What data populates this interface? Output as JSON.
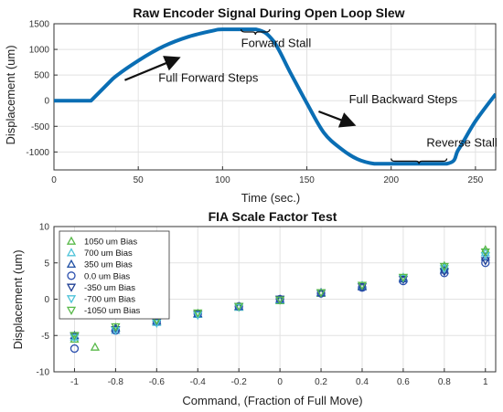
{
  "chart_data": [
    {
      "type": "line",
      "title": "Raw Encoder Signal During Open Loop Slew",
      "xlabel": "Time (sec.)",
      "ylabel": "Displacement (um)",
      "xlim": [
        0,
        262
      ],
      "ylim": [
        -1350,
        1500
      ],
      "xticks": [
        0,
        50,
        100,
        150,
        200,
        250
      ],
      "yticks": [
        -1000,
        -500,
        0,
        500,
        1000,
        1500
      ],
      "grid": true,
      "line_color": "#0a6eb4",
      "series": [
        {
          "x": [
            0,
            22,
            35,
            50,
            65,
            80,
            95,
            100,
            120,
            130,
            140,
            150,
            160,
            170,
            180,
            190,
            200,
            233,
            240,
            250,
            262
          ],
          "y": [
            0,
            0,
            430,
            780,
            1060,
            1250,
            1370,
            1390,
            1390,
            1170,
            560,
            -50,
            -620,
            -930,
            -1140,
            -1230,
            -1230,
            -1230,
            -950,
            -400,
            130
          ]
        }
      ],
      "annotations": [
        {
          "text": "Forward Stall",
          "x": 111,
          "y": 1050
        },
        {
          "text": "Full Forward Steps",
          "x": 62,
          "y": 370
        },
        {
          "text": "Full Backward Steps",
          "x": 175,
          "y": -50
        },
        {
          "text": "Reverse Stall",
          "x": 221,
          "y": -900
        }
      ],
      "arrows": [
        {
          "from": [
            42,
            400
          ],
          "to": [
            73,
            820
          ]
        },
        {
          "from": [
            157,
            -210
          ],
          "to": [
            177,
            -460
          ]
        }
      ],
      "braces": [
        {
          "x1": 111,
          "x2": 128,
          "y": 1340
        },
        {
          "x1": 200,
          "x2": 233,
          "y": -1180
        }
      ]
    },
    {
      "type": "scatter",
      "title": "FIA Scale Factor Test",
      "xlabel": "Command, (Fraction of Full Move)",
      "ylabel": "Displacement (um)",
      "xlim": [
        -1.1,
        1.05
      ],
      "ylim": [
        -10,
        10
      ],
      "xticks": [
        -1,
        -0.8,
        -0.6,
        -0.4,
        -0.2,
        0,
        0.2,
        0.4,
        0.6,
        0.8,
        1
      ],
      "yticks": [
        -10,
        -5,
        0,
        5,
        10
      ],
      "grid": true,
      "legend_position": "top-left",
      "series": [
        {
          "name": "1050 um Bias",
          "marker": "triangle-up",
          "color": "#59b94a",
          "x": [
            -1,
            -0.9,
            -0.8,
            -0.6,
            -0.4,
            -0.2,
            0,
            0.2,
            0.4,
            0.6,
            0.8,
            1
          ],
          "y": [
            -5.5,
            -6.6,
            -3.9,
            -3.0,
            -2.0,
            -1.1,
            -0.2,
            0.8,
            1.8,
            3.0,
            4.6,
            6.8
          ]
        },
        {
          "name": "700 um Bias",
          "marker": "triangle-up",
          "color": "#4ec3d9",
          "x": [
            -1,
            -0.8,
            -0.6,
            -0.4,
            -0.2,
            0,
            0.2,
            0.4,
            0.6,
            0.8,
            1
          ],
          "y": [
            -5.2,
            -4.3,
            -3.2,
            -2.1,
            -1.1,
            -0.1,
            0.9,
            1.9,
            3.0,
            4.4,
            6.4
          ]
        },
        {
          "name": "350 um Bias",
          "marker": "triangle-up",
          "color": "#1f4fa3",
          "x": [
            -1,
            -0.8,
            -0.6,
            -0.4,
            -0.2,
            0,
            0.2,
            0.4,
            0.6,
            0.8,
            1
          ],
          "y": [
            -5.0,
            -4.0,
            -3.0,
            -2.0,
            -1.0,
            0.0,
            0.9,
            1.7,
            2.8,
            4.0,
            5.8
          ]
        },
        {
          "name": "0.0 um Bias",
          "marker": "circle",
          "color": "#2b4fae",
          "x": [
            -1,
            -0.8,
            -0.6,
            -0.4,
            -0.2,
            0,
            0.2,
            0.4,
            0.6,
            0.8,
            1
          ],
          "y": [
            -6.8,
            -4.3,
            -3.1,
            -2.0,
            -1.0,
            0.0,
            0.8,
            1.6,
            2.5,
            3.6,
            5.0
          ]
        },
        {
          "name": "-350 um Bias",
          "marker": "triangle-down",
          "color": "#1f3f94",
          "x": [
            -1,
            -0.8,
            -0.6,
            -0.4,
            -0.2,
            0,
            0.2,
            0.4,
            0.6,
            0.8,
            1
          ],
          "y": [
            -5.1,
            -4.2,
            -3.2,
            -2.1,
            -1.0,
            0.0,
            0.8,
            1.7,
            2.7,
            3.8,
            5.3
          ]
        },
        {
          "name": "-700 um Bias",
          "marker": "triangle-down",
          "color": "#4ec3d9",
          "x": [
            -1,
            -0.8,
            -0.6,
            -0.4,
            -0.2,
            0,
            0.2,
            0.4,
            0.6,
            0.8,
            1
          ],
          "y": [
            -5.3,
            -4.3,
            -3.3,
            -2.2,
            -1.1,
            -0.1,
            0.9,
            1.9,
            2.9,
            4.2,
            6.0
          ]
        },
        {
          "name": "-1050 um Bias",
          "marker": "triangle-down",
          "color": "#59b94a",
          "x": [
            -1,
            -0.8,
            -0.6,
            -0.4,
            -0.2,
            0,
            0.2,
            0.4,
            0.6,
            0.8,
            1
          ],
          "y": [
            -5.0,
            -3.8,
            -2.9,
            -1.9,
            -1.0,
            -0.1,
            0.9,
            1.9,
            3.0,
            4.5,
            6.5
          ]
        }
      ]
    }
  ]
}
